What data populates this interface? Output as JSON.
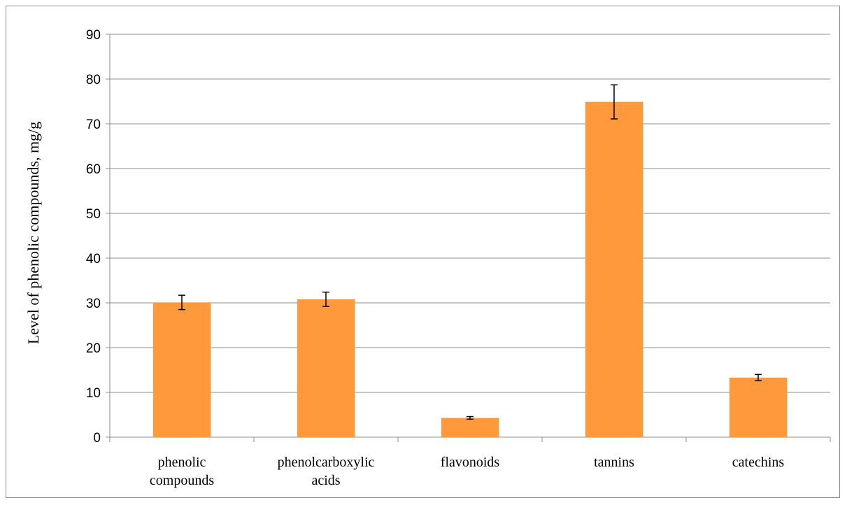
{
  "chart_data": {
    "type": "bar",
    "title": "",
    "xlabel": "",
    "ylabel": "Level of phenolic compounds, mg/g",
    "ylim": [
      0,
      90
    ],
    "yticks": [
      0,
      10,
      20,
      30,
      40,
      50,
      60,
      70,
      80,
      90
    ],
    "grid": true,
    "legend": "none",
    "bar_color": "#ff9a3c",
    "categories": [
      [
        "phenolic",
        "compounds"
      ],
      [
        "phenolcarboxylic",
        "acids"
      ],
      [
        "flavonoids"
      ],
      [
        "tannins"
      ],
      [
        "catechins"
      ]
    ],
    "values": [
      30.1,
      30.8,
      4.3,
      74.9,
      13.3
    ],
    "errors": [
      1.6,
      1.6,
      0.3,
      3.8,
      0.7
    ]
  }
}
